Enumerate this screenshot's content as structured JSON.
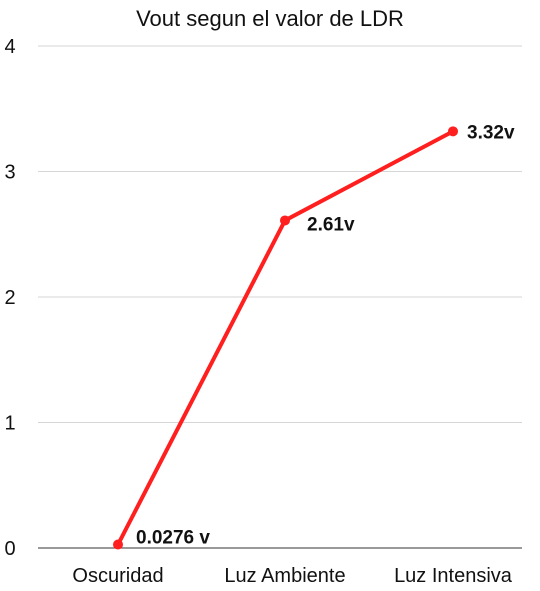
{
  "chart_data": {
    "type": "line",
    "title": "Vout segun el valor de LDR",
    "categories": [
      "Oscuridad",
      "Luz Ambiente",
      "Luz Intensiva"
    ],
    "series": [
      {
        "values": [
          0.0276,
          2.61,
          3.32
        ],
        "data_labels": [
          "0.0276 v",
          "2.61v",
          "3.32v"
        ],
        "color": "#ff1f1f"
      }
    ],
    "y_ticks": [
      "0",
      "1",
      "2",
      "3",
      "4"
    ],
    "ylim": [
      0,
      4
    ],
    "grid": true,
    "legend": "none"
  }
}
